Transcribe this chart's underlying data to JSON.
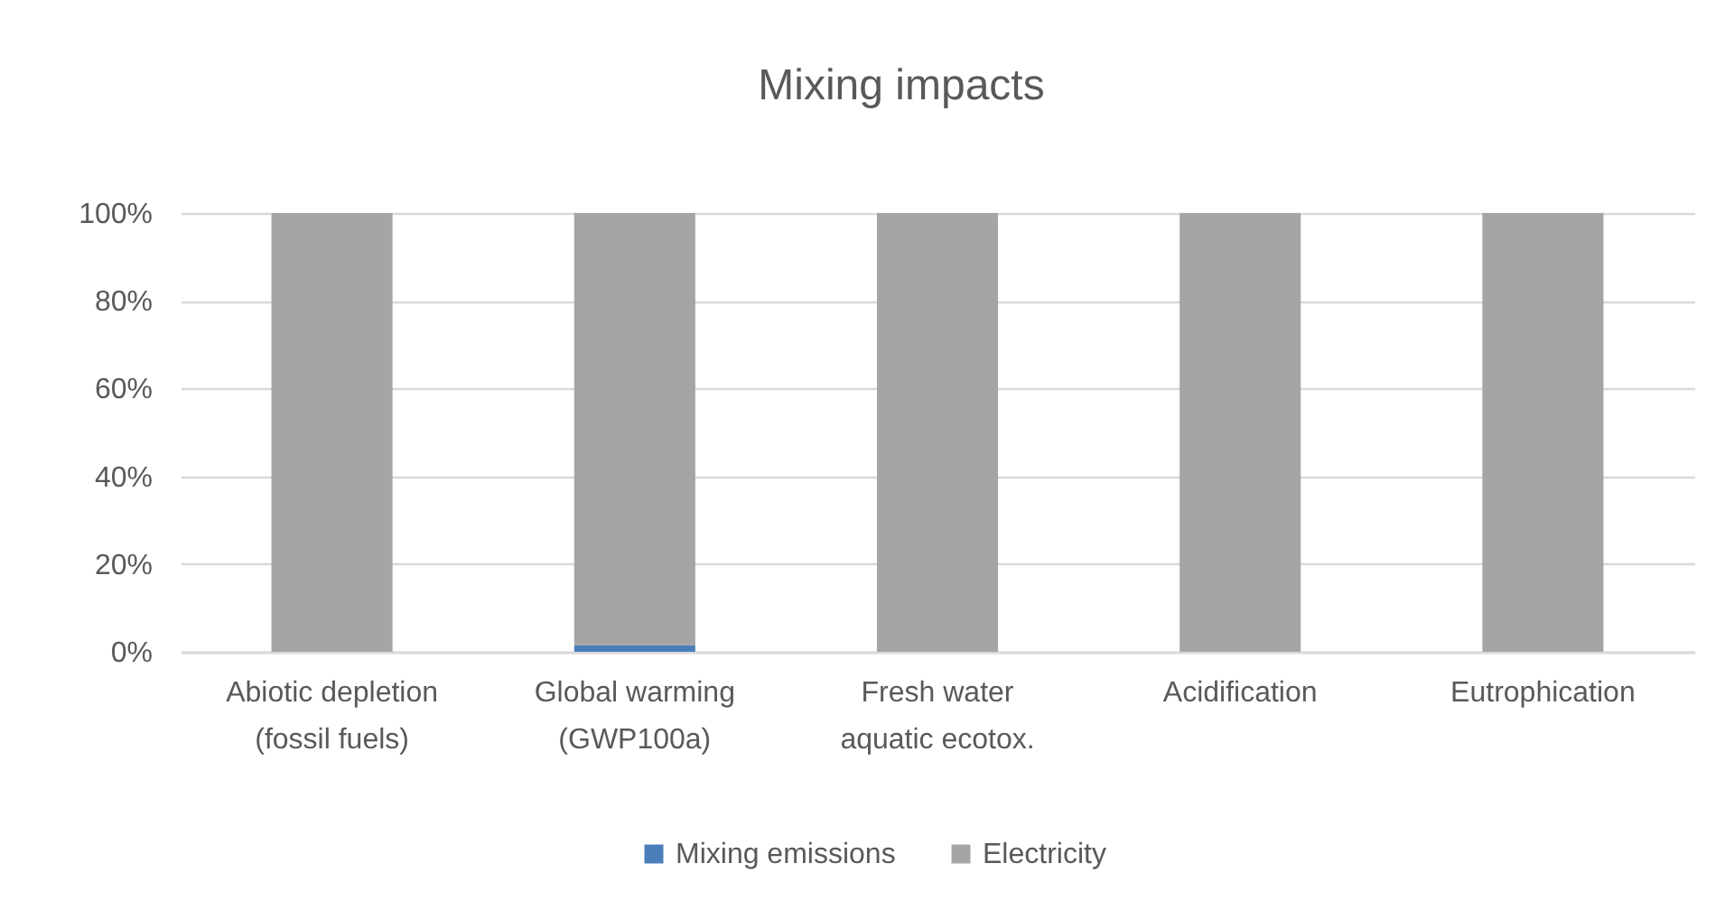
{
  "chart_data": {
    "type": "bar",
    "title": "Mixing impacts",
    "categories": [
      "Abiotic depletion (fossil fuels)",
      "Global warming (GWP100a)",
      "Fresh water aquatic ecotox.",
      "Acidification",
      "Eutrophication"
    ],
    "series": [
      {
        "name": "Mixing emissions",
        "color": "#4a7ebb",
        "values": [
          0,
          1.5,
          0,
          0,
          0
        ]
      },
      {
        "name": "Electricity",
        "color": "#a5a5a5",
        "values": [
          100,
          98.5,
          100,
          100,
          100
        ]
      }
    ],
    "stacked": true,
    "ylim": [
      0,
      100
    ],
    "yticks": [
      {
        "value": 0,
        "label": "0%"
      },
      {
        "value": 20,
        "label": "20%"
      },
      {
        "value": 40,
        "label": "40%"
      },
      {
        "value": 60,
        "label": "60%"
      },
      {
        "value": 80,
        "label": "80%"
      },
      {
        "value": 100,
        "label": "100%"
      }
    ],
    "grid": "y",
    "legend": "bottom"
  }
}
